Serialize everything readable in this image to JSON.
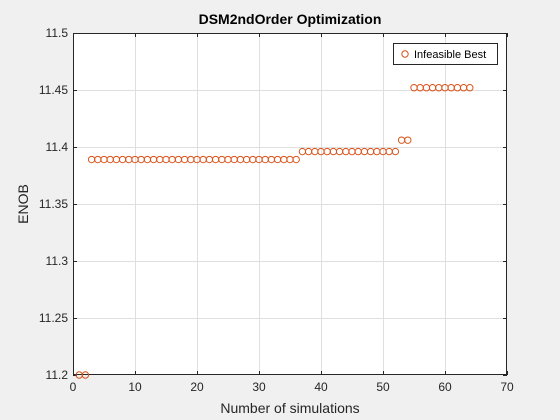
{
  "chart_data": {
    "type": "scatter",
    "title": "DSM2ndOrder Optimization",
    "xlabel": "Number of simulations",
    "ylabel": "ENOB",
    "xlim": [
      0,
      70
    ],
    "ylim": [
      11.2,
      11.5
    ],
    "xticks": [
      "0",
      "10",
      "20",
      "30",
      "40",
      "50",
      "60",
      "70"
    ],
    "yticks": [
      "11.2",
      "11.25",
      "11.3",
      "11.35",
      "11.4",
      "11.45",
      "11.5"
    ],
    "grid": true,
    "legend_position": "top-right",
    "marker": "open-circle",
    "series": [
      {
        "name": "Infeasible Best",
        "color": "#d95319",
        "x": [
          1,
          2,
          3,
          4,
          5,
          6,
          7,
          8,
          9,
          10,
          11,
          12,
          13,
          14,
          15,
          16,
          17,
          18,
          19,
          20,
          21,
          22,
          23,
          24,
          25,
          26,
          27,
          28,
          29,
          30,
          31,
          32,
          33,
          34,
          35,
          36,
          37,
          38,
          39,
          40,
          41,
          42,
          43,
          44,
          45,
          46,
          47,
          48,
          49,
          50,
          51,
          52,
          53,
          54,
          55,
          56,
          57,
          58,
          59,
          60,
          61,
          62,
          63,
          64
        ],
        "y": [
          11.2,
          11.2,
          11.389,
          11.389,
          11.389,
          11.389,
          11.389,
          11.389,
          11.389,
          11.389,
          11.389,
          11.389,
          11.389,
          11.389,
          11.389,
          11.389,
          11.389,
          11.389,
          11.389,
          11.389,
          11.389,
          11.389,
          11.389,
          11.389,
          11.389,
          11.389,
          11.389,
          11.389,
          11.389,
          11.389,
          11.389,
          11.389,
          11.389,
          11.389,
          11.389,
          11.389,
          11.396,
          11.396,
          11.396,
          11.396,
          11.396,
          11.396,
          11.396,
          11.396,
          11.396,
          11.396,
          11.396,
          11.396,
          11.396,
          11.396,
          11.396,
          11.396,
          11.406,
          11.406,
          11.452,
          11.452,
          11.452,
          11.452,
          11.452,
          11.452,
          11.452,
          11.452,
          11.452,
          11.452
        ]
      }
    ]
  }
}
